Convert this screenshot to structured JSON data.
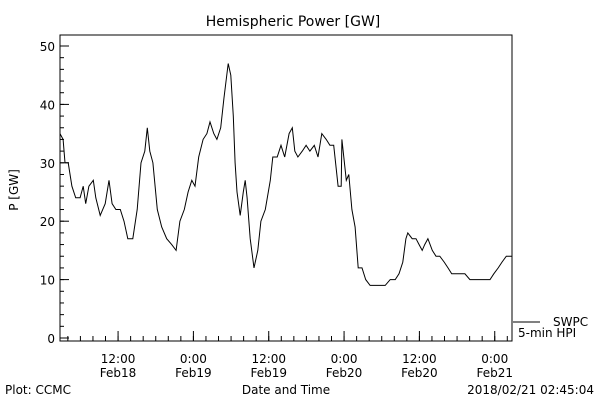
{
  "chart_data": {
    "type": "line",
    "title": "Hemispheric Power [GW]",
    "xlabel": "Date and Time",
    "ylabel": "P [GW]",
    "x_units": "hours since 2018/02/18 02:45",
    "xlim": [
      0,
      72
    ],
    "ylim": [
      0,
      51.5
    ],
    "y_ticks": [
      0,
      10,
      20,
      30,
      40,
      50
    ],
    "y_minor_step": 2,
    "x_minor_step_hours": 2,
    "x_ticks": [
      {
        "x": 9.25,
        "time": "12:00",
        "date": "Feb18"
      },
      {
        "x": 21.25,
        "time": "0:00",
        "date": "Feb19"
      },
      {
        "x": 33.25,
        "time": "12:00",
        "date": "Feb19"
      },
      {
        "x": 45.25,
        "time": "0:00",
        "date": "Feb20"
      },
      {
        "x": 57.25,
        "time": "12:00",
        "date": "Feb20"
      },
      {
        "x": 69.25,
        "time": "0:00",
        "date": "Feb21"
      }
    ],
    "legend": {
      "position": "bottom-right outside",
      "source": "SWPC",
      "label": "5-min HPI"
    },
    "grid": false,
    "series": [
      {
        "name": "SWPC 5-min HPI",
        "x": [
          0,
          0.5,
          0.8,
          1.3,
          1.9,
          2.5,
          3.2,
          3.7,
          4.1,
          4.6,
          5.3,
          5.7,
          6.4,
          7.2,
          7.8,
          8.3,
          8.9,
          9.6,
          10.2,
          10.8,
          11.6,
          12.3,
          12.9,
          13.5,
          13.9,
          14.3,
          14.8,
          15.5,
          16.2,
          17.0,
          17.8,
          18.5,
          19.1,
          19.8,
          20.4,
          21.0,
          21.5,
          22.1,
          22.8,
          23.4,
          23.9,
          24.5,
          25.0,
          25.6,
          26.1,
          26.8,
          27.2,
          27.6,
          27.9,
          28.2,
          28.7,
          29.2,
          29.5,
          29.8,
          30.3,
          30.9,
          31.5,
          32.0,
          32.7,
          33.5,
          33.9,
          34.6,
          35.2,
          35.8,
          36.5,
          37.0,
          37.4,
          37.9,
          38.6,
          39.2,
          39.8,
          40.5,
          41.1,
          41.7,
          42.4,
          43.0,
          43.6,
          44.3,
          44.8,
          44.9,
          45.6,
          46.0,
          46.5,
          47.0,
          47.5,
          48.1,
          48.7,
          49.4,
          50.0,
          50.7,
          51.8,
          52.6,
          53.4,
          54.0,
          54.6,
          55.1,
          55.4,
          56.1,
          56.7,
          57.2,
          57.7,
          58.1,
          58.6,
          59.3,
          59.9,
          60.5,
          61.2,
          61.8,
          62.4,
          62.9,
          63.7,
          64.5,
          65.3,
          66.1,
          66.9,
          68.5,
          69.1,
          69.8,
          70.4,
          71.1,
          72
        ],
        "y": [
          35,
          34,
          30,
          30,
          26,
          24,
          24,
          26,
          23,
          26,
          27,
          24,
          21,
          23,
          27,
          23,
          22,
          22,
          20,
          17,
          17,
          22,
          30,
          32,
          36,
          32,
          30,
          22,
          19,
          17,
          16,
          15,
          20,
          22,
          25,
          27,
          26,
          31,
          34,
          35,
          37,
          35,
          34,
          36,
          41,
          47,
          45,
          38,
          30,
          25,
          21,
          25,
          27,
          24,
          17,
          12,
          15,
          20,
          22,
          27,
          31,
          31,
          33,
          31,
          35,
          36,
          32,
          31,
          32,
          33,
          32,
          33,
          31,
          35,
          34,
          33,
          33,
          26,
          26,
          34,
          27,
          28,
          22,
          19,
          12,
          12,
          10,
          9,
          9,
          9,
          9,
          10,
          10,
          11,
          13,
          17,
          18,
          17,
          17,
          16,
          15,
          16,
          17,
          15,
          14,
          14,
          13,
          12,
          11,
          11,
          11,
          11,
          10,
          10,
          10,
          10,
          11,
          12,
          13,
          14,
          14
        ]
      }
    ],
    "footer": {
      "left": "Plot: CCMC",
      "right": "2018/02/21 02:45:04"
    }
  }
}
